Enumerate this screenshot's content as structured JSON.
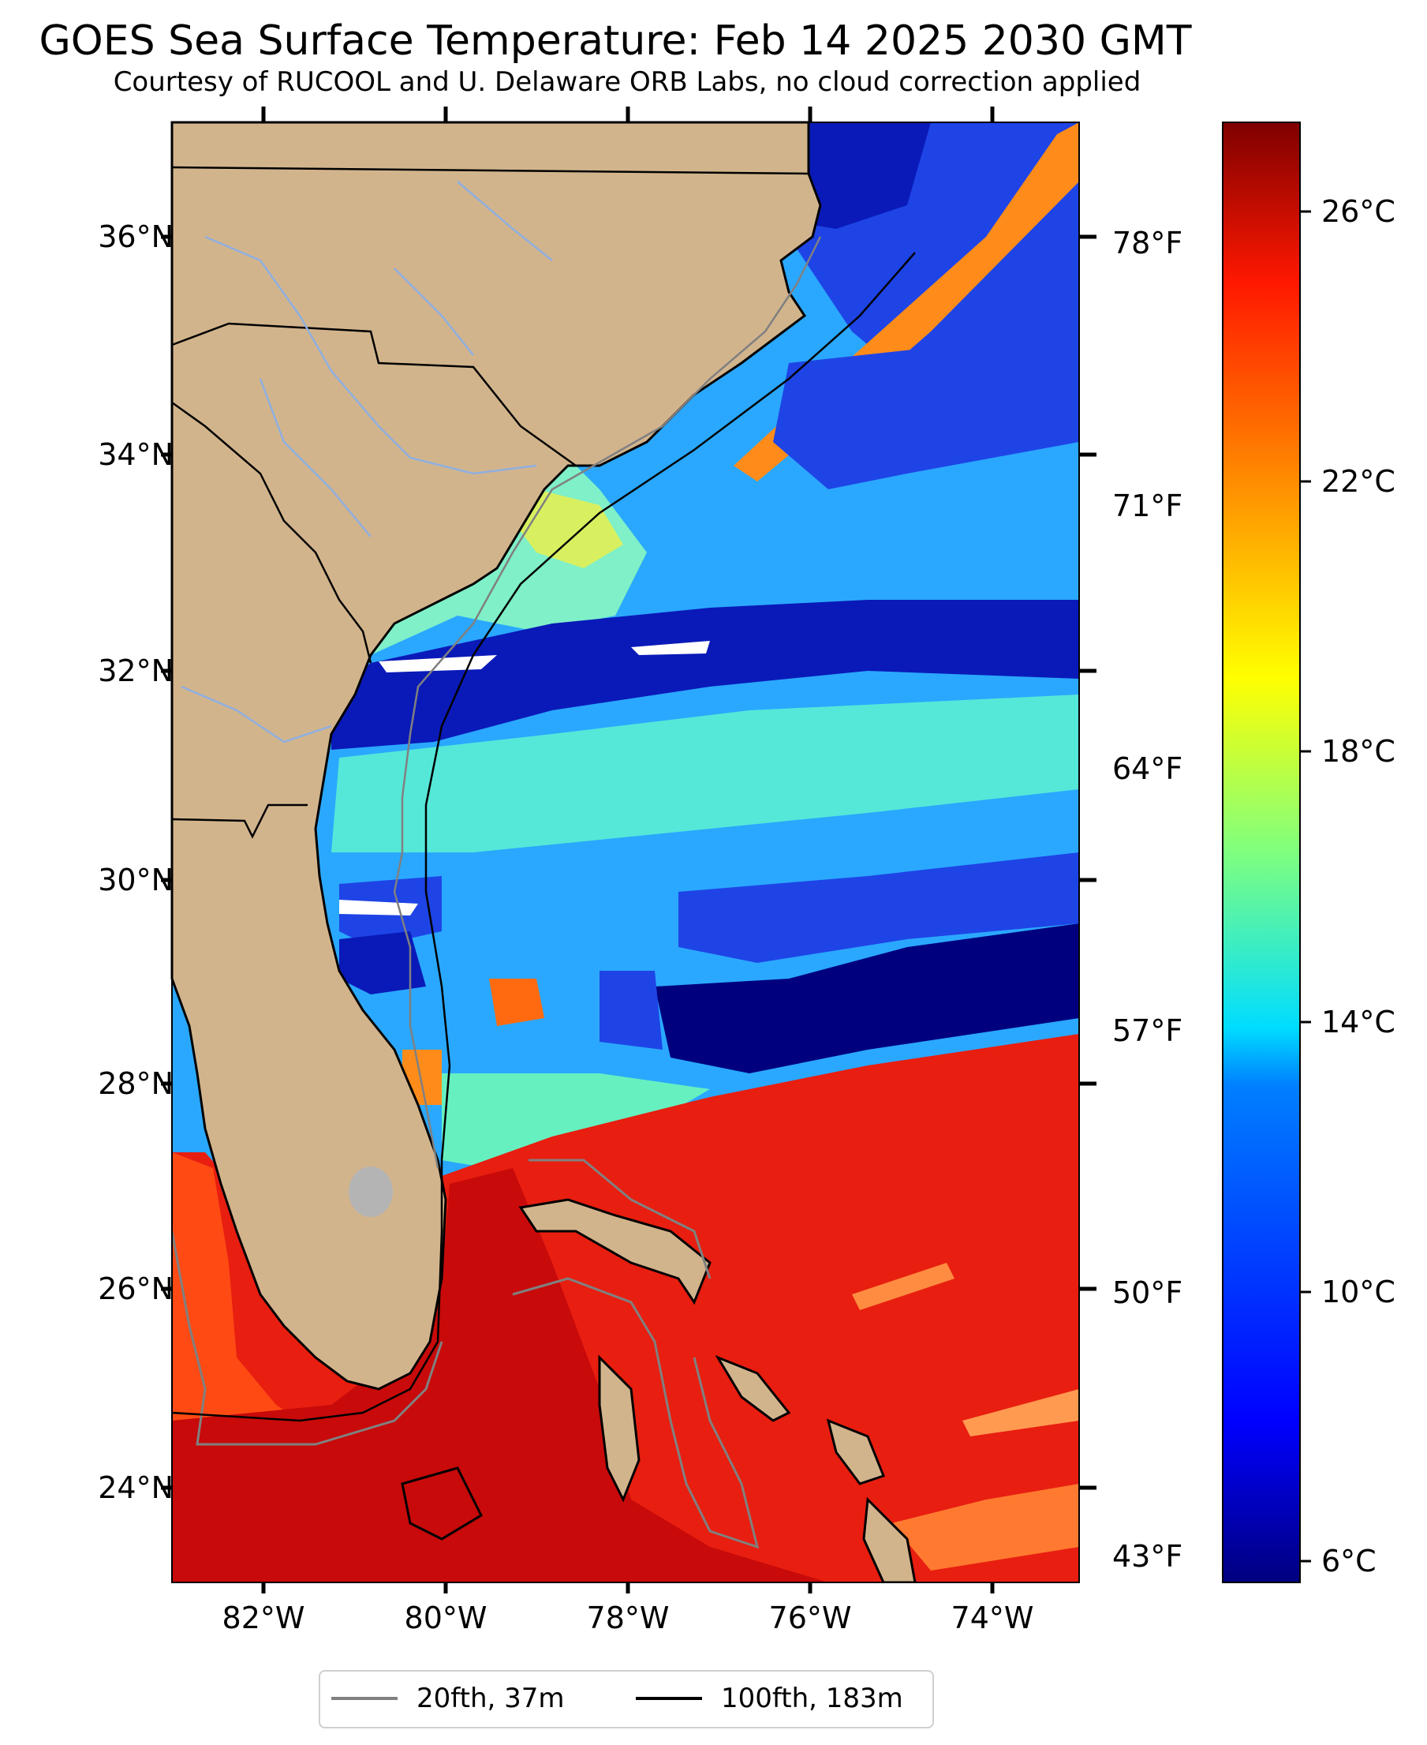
{
  "title": "GOES Sea Surface Temperature: Feb 14 2025 2030 GMT",
  "subtitle": "Courtesy of RUCOOL and U. Delaware ORB Labs, no cloud correction applied",
  "map": {
    "land_color": "#D2B48C",
    "river_color": "#8FAFE0",
    "border_color": "#000000",
    "latitude_labels": [
      "36°N",
      "34°N",
      "32°N",
      "30°N",
      "28°N",
      "26°N",
      "24°N"
    ],
    "longitude_labels": [
      "82°W",
      "80°W",
      "78°W",
      "76°W",
      "74°W"
    ],
    "fahrenheit_labels": [
      "78°F",
      "71°F",
      "64°F",
      "57°F",
      "50°F",
      "43°F"
    ]
  },
  "colorbar": {
    "labels": [
      "26°C",
      "22°C",
      "18°C",
      "14°C",
      "10°C",
      "6°C"
    ],
    "colors": [
      "#00007F",
      "#0000FF",
      "#007FFF",
      "#00FFFF",
      "#7FFF7F",
      "#FFFF00",
      "#FF7F00",
      "#FF0000",
      "#7F0000"
    ]
  },
  "legend": {
    "items": [
      {
        "label": "20fth, 37m",
        "color": "#808080"
      },
      {
        "label": "100fth, 183m",
        "color": "#000000"
      }
    ]
  }
}
